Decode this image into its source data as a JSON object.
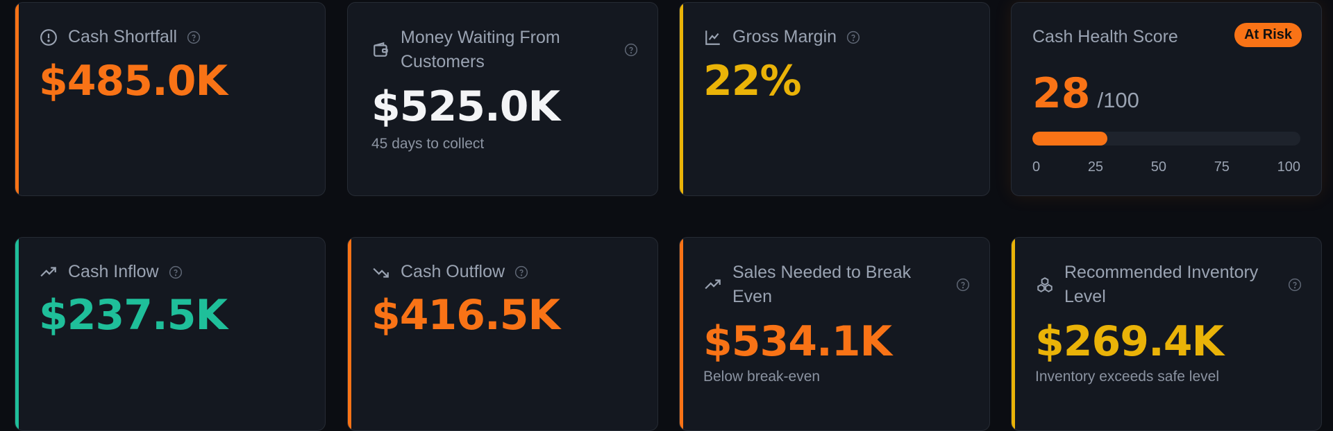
{
  "cards": {
    "cash_shortfall": {
      "title": "Cash Shortfall",
      "value": "$485.0K",
      "icon": "alert-circle-icon",
      "accent": "#f97316"
    },
    "money_waiting": {
      "title": "Money Waiting From Customers",
      "value": "$525.0K",
      "subtitle": "45 days to collect",
      "icon": "wallet-icon"
    },
    "gross_margin": {
      "title": "Gross Margin",
      "value": "22%",
      "icon": "line-chart-icon",
      "accent": "#eab308"
    },
    "cash_health": {
      "title": "Cash Health Score",
      "badge": "At Risk",
      "score": "28",
      "max_label": "/100",
      "score_fraction": 0.28,
      "ticks": [
        "0",
        "25",
        "50",
        "75",
        "100"
      ]
    },
    "cash_inflow": {
      "title": "Cash Inflow",
      "value": "$237.5K",
      "icon": "trending-up-icon",
      "accent": "#1fbf9a"
    },
    "cash_outflow": {
      "title": "Cash Outflow",
      "value": "$416.5K",
      "icon": "trending-down-icon",
      "accent": "#f97316"
    },
    "break_even": {
      "title": "Sales Needed to Break Even",
      "value": "$534.1K",
      "subtitle": "Below break-even",
      "icon": "trending-up-icon",
      "accent": "#f97316"
    },
    "inventory": {
      "title": "Recommended Inventory Level",
      "value": "$269.4K",
      "subtitle": "Inventory exceeds safe level",
      "icon": "boxes-icon",
      "accent": "#eab308"
    }
  },
  "help_icon": "help-circle-icon"
}
